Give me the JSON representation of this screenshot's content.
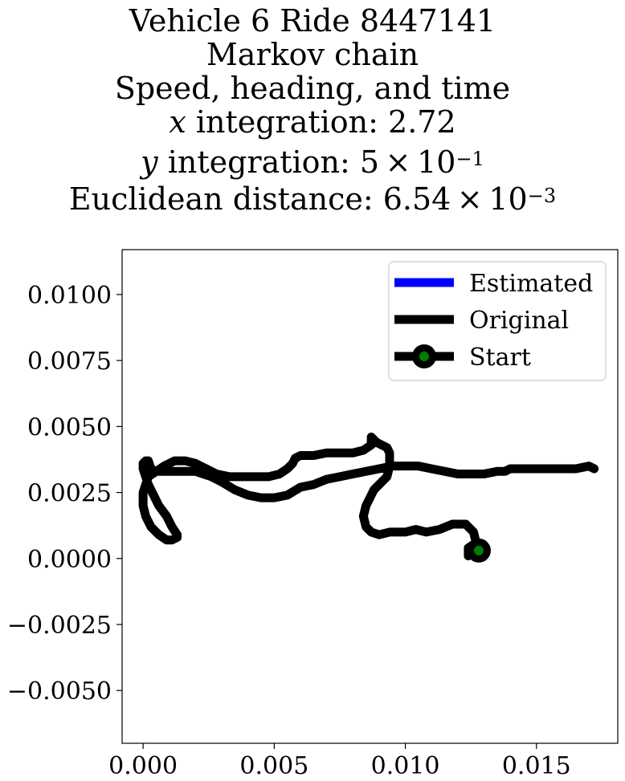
{
  "title": {
    "line1": "Vehicle 6 Ride 8447141",
    "line2": "Markov chain",
    "line3": "Speed, heading, and time",
    "line4_var": "x",
    "line4_rest": " integration: 2.72",
    "line5_var": "y",
    "line5_rest": " integration: 5 × 10",
    "line5_exp": "−1",
    "line6_rest": "Euclidean distance: 6.54 × 10",
    "line6_exp": "−3"
  },
  "chart_data": {
    "type": "line",
    "xlim": [
      -0.0008,
      0.0181
    ],
    "ylim": [
      -0.007,
      0.0117
    ],
    "x_ticks": [
      0.0,
      0.005,
      0.01,
      0.015
    ],
    "x_tick_labels": [
      "0.000",
      "0.005",
      "0.010",
      "0.015"
    ],
    "y_ticks": [
      0.01,
      0.0075,
      0.005,
      0.0025,
      0.0,
      -0.0025,
      -0.005
    ],
    "y_tick_labels": [
      "0.0100",
      "0.0075",
      "0.0050",
      "0.0025",
      "0.0000",
      "−0.0025",
      "−0.0050"
    ],
    "legend_position": "top-right",
    "colors": {
      "estimated": "#0000ff",
      "original": "#000000",
      "start_marker": "#008000"
    },
    "series": [
      {
        "name": "Estimated",
        "x": [],
        "y": []
      },
      {
        "name": "Original",
        "x": [
          0.0128,
          0.0124,
          0.0124,
          0.0127,
          0.0126,
          0.0123,
          0.0118,
          0.0113,
          0.0108,
          0.0104,
          0.01,
          0.0094,
          0.009,
          0.0087,
          0.0085,
          0.0084,
          0.0085,
          0.0088,
          0.0091,
          0.0093,
          0.0094,
          0.0094,
          0.0094,
          0.0093,
          0.0091,
          0.0089,
          0.0088,
          0.0087,
          0.0087,
          0.0087,
          0.0084,
          0.008,
          0.0075,
          0.007,
          0.0065,
          0.006,
          0.0058,
          0.0057,
          0.0055,
          0.0052,
          0.0048,
          0.0043,
          0.0038,
          0.0033,
          0.0028,
          0.0024,
          0.002,
          0.0016,
          0.0012,
          0.0008,
          0.0005,
          0.0003,
          0.0002,
          0.0001,
          0.0,
          0.0,
          0.0001,
          0.0002,
          0.0004,
          0.0006,
          0.0009,
          0.0011,
          0.0013,
          0.0013,
          0.0011,
          0.0009,
          0.0006,
          0.0003,
          0.0001,
          0.0,
          0.0,
          0.0002,
          0.0005,
          0.0009,
          0.0014,
          0.002,
          0.0026,
          0.003,
          0.0035,
          0.004,
          0.0045,
          0.005,
          0.0055,
          0.006,
          0.0065,
          0.007,
          0.0075,
          0.008,
          0.0085,
          0.009,
          0.0095,
          0.01,
          0.0105,
          0.011,
          0.0115,
          0.012,
          0.0125,
          0.013,
          0.0135,
          0.0138,
          0.014,
          0.0145,
          0.015,
          0.0155,
          0.016,
          0.0165,
          0.017,
          0.0172
        ],
        "y": [
          0.0003,
          0.0001,
          0.0004,
          0.0006,
          0.001,
          0.0013,
          0.0013,
          0.0011,
          0.001,
          0.0011,
          0.001,
          0.001,
          0.0009,
          0.001,
          0.0012,
          0.0016,
          0.002,
          0.0026,
          0.0029,
          0.0031,
          0.0035,
          0.0038,
          0.004,
          0.0042,
          0.0043,
          0.0044,
          0.0045,
          0.0046,
          0.0044,
          0.0043,
          0.0041,
          0.004,
          0.004,
          0.004,
          0.0039,
          0.0039,
          0.0038,
          0.0036,
          0.0034,
          0.0032,
          0.0031,
          0.0031,
          0.0031,
          0.0031,
          0.0032,
          0.0034,
          0.0036,
          0.0037,
          0.0037,
          0.0035,
          0.0033,
          0.0034,
          0.0037,
          0.0037,
          0.0036,
          0.0034,
          0.0031,
          0.0028,
          0.0024,
          0.002,
          0.0016,
          0.0012,
          0.0009,
          0.0008,
          0.0007,
          0.0007,
          0.0009,
          0.0012,
          0.0016,
          0.002,
          0.0025,
          0.0031,
          0.0033,
          0.0033,
          0.0033,
          0.0033,
          0.0031,
          0.0029,
          0.0026,
          0.0024,
          0.0023,
          0.0023,
          0.0024,
          0.0027,
          0.0028,
          0.003,
          0.0031,
          0.0032,
          0.0033,
          0.0034,
          0.0035,
          0.0035,
          0.0035,
          0.0034,
          0.0033,
          0.0032,
          0.0032,
          0.0032,
          0.0033,
          0.0033,
          0.0034,
          0.0034,
          0.0034,
          0.0034,
          0.0034,
          0.0034,
          0.0035,
          0.0034
        ]
      },
      {
        "name": "Start",
        "x": [
          0.0128
        ],
        "y": [
          0.0003
        ]
      }
    ]
  }
}
